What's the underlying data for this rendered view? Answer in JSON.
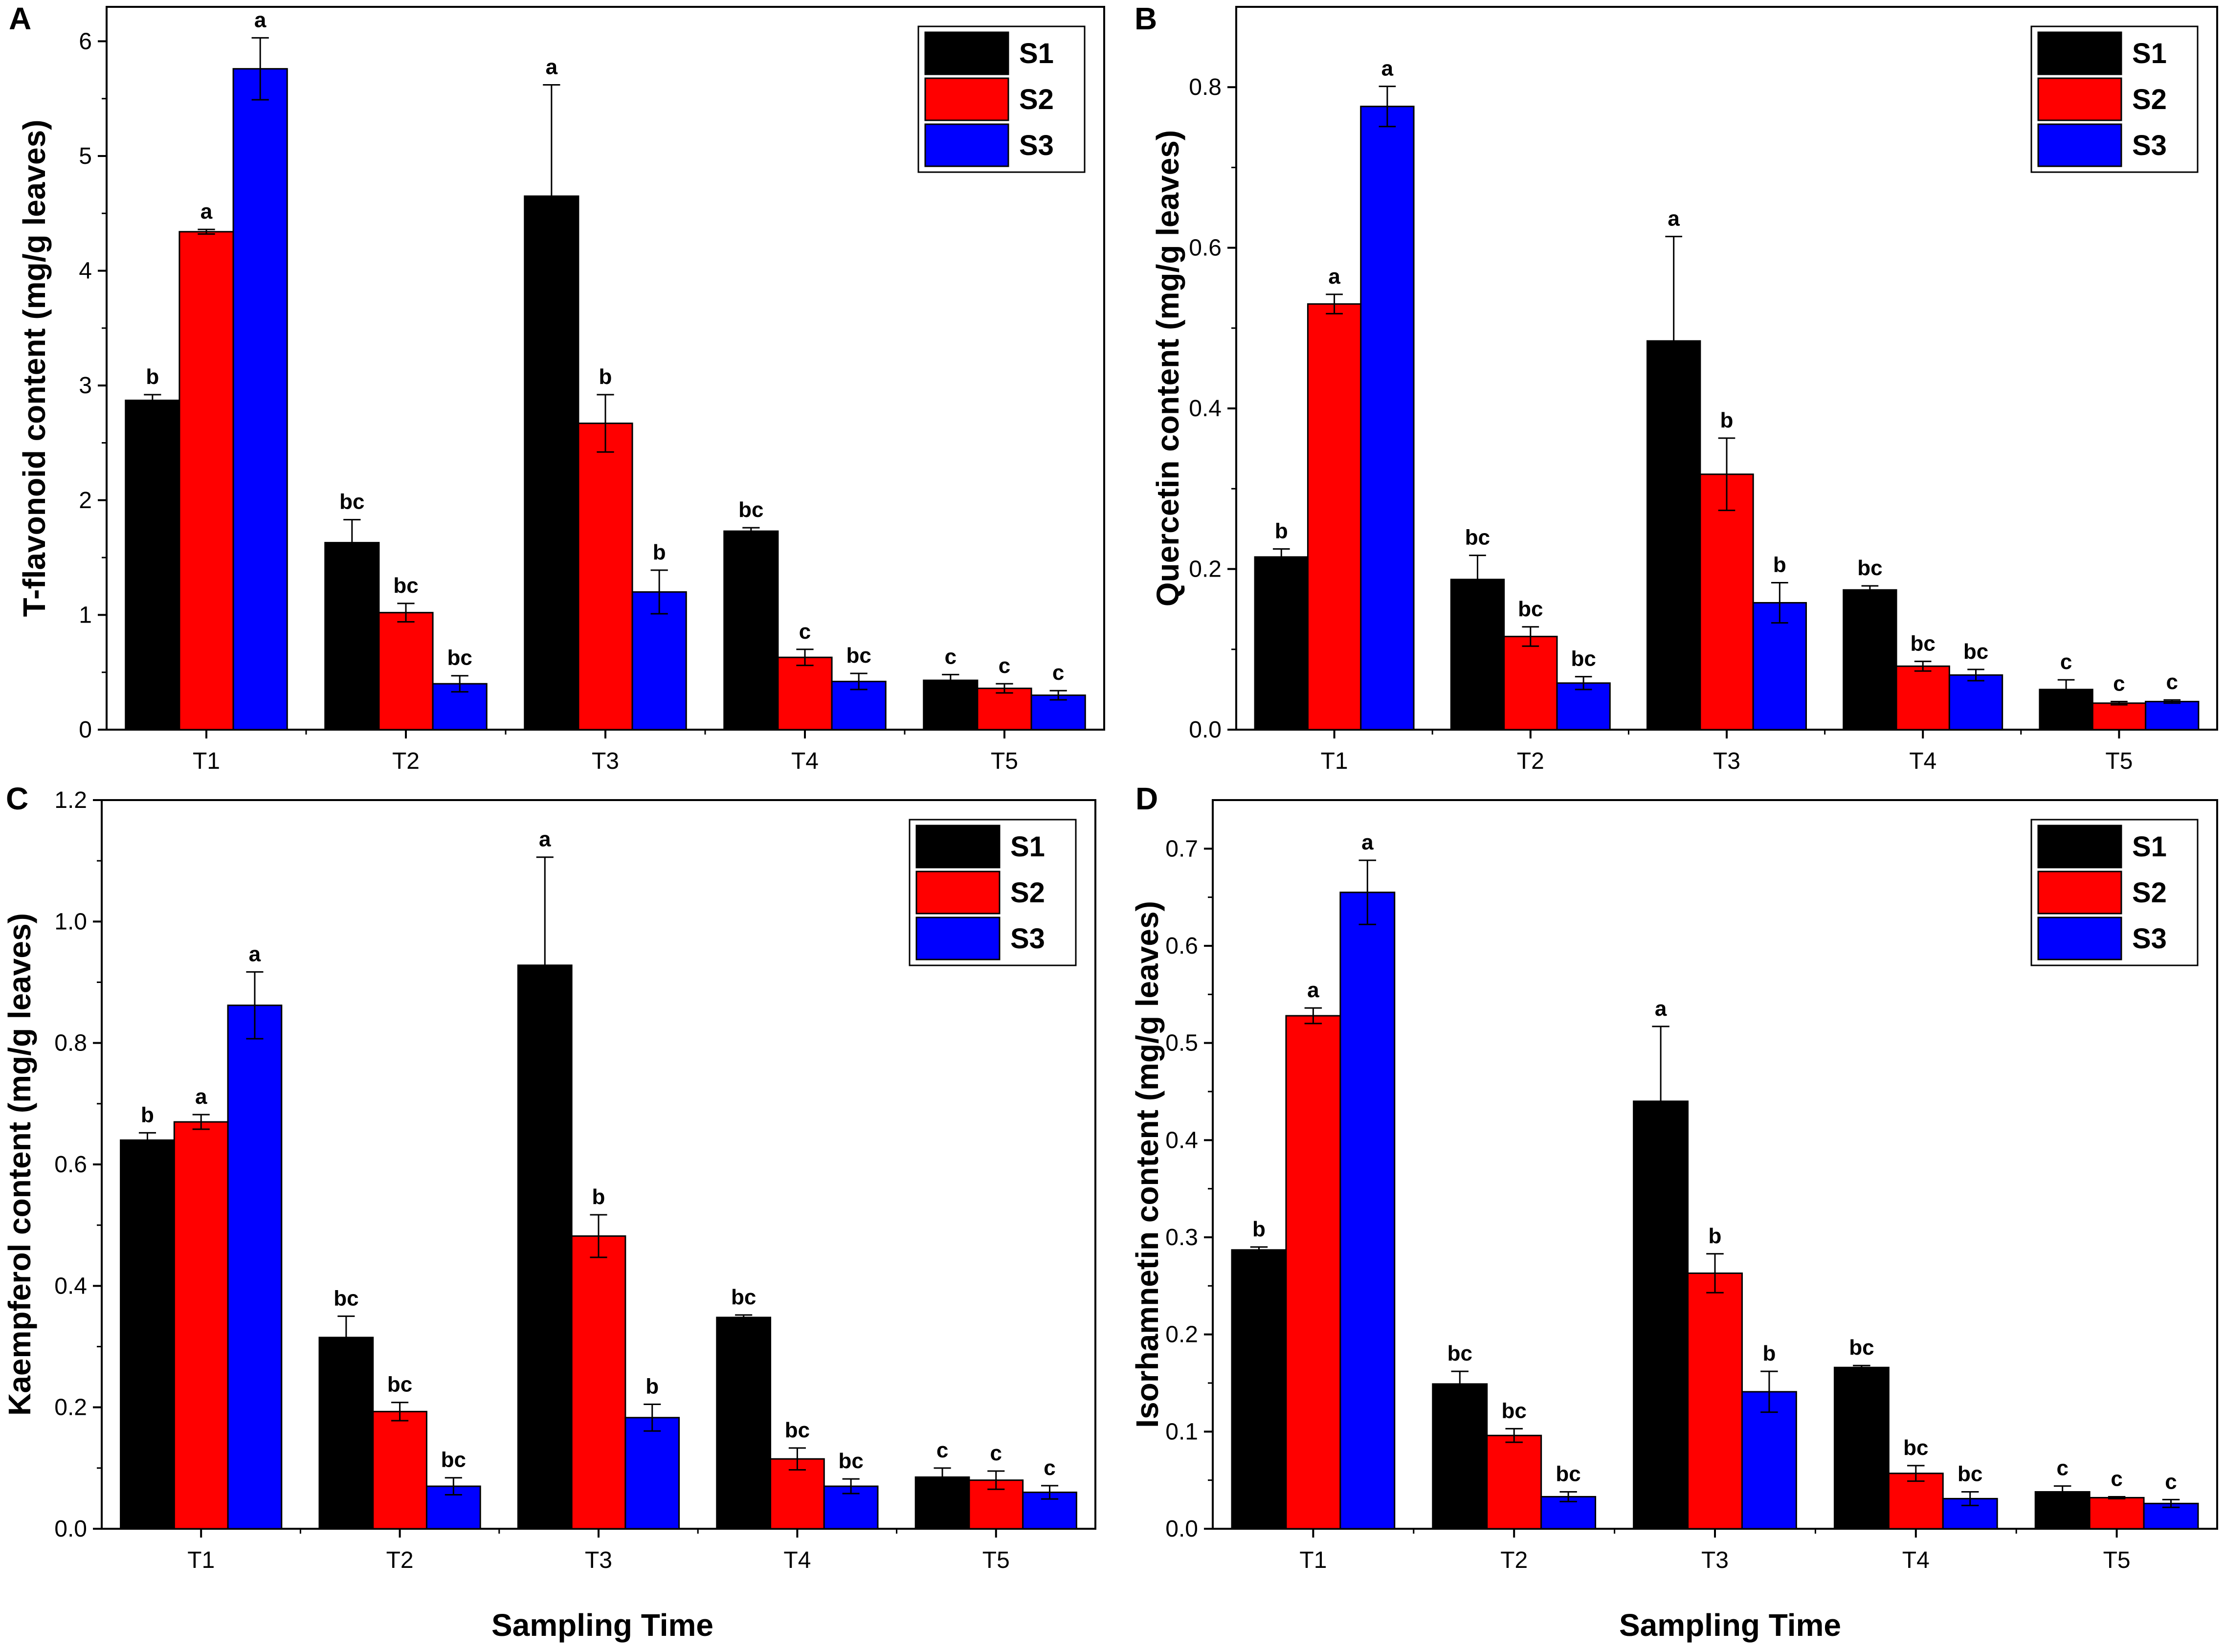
{
  "x_axis_label": "Sampling Time",
  "series_names": [
    "S1",
    "S2",
    "S3"
  ],
  "colors": {
    "S1": "#000000",
    "S2": "#ff0000",
    "S3": "#0000ff",
    "axis": "#000000"
  },
  "chart_data": [
    {
      "panel": "A",
      "type": "bar",
      "categories": [
        "T1",
        "T2",
        "T3",
        "T4",
        "T5"
      ],
      "ylabel": "T-flavonoid content (mg/g leaves)",
      "xlabel": "Sampling Time",
      "ylim": [
        0,
        6.3
      ],
      "yticks": [
        0,
        1,
        2,
        3,
        4,
        5,
        6
      ],
      "ytick_labels": [
        "0",
        "1",
        "2",
        "3",
        "4",
        "5",
        "6"
      ],
      "legend_position": "top-right",
      "series": [
        {
          "name": "S1",
          "values": [
            2.87,
            1.63,
            4.65,
            1.73,
            0.43
          ],
          "errors": [
            0.05,
            0.2,
            0.97,
            0.03,
            0.05
          ],
          "labels": [
            "b",
            "bc",
            "a",
            "bc",
            "c"
          ]
        },
        {
          "name": "S2",
          "values": [
            4.34,
            1.02,
            2.67,
            0.63,
            0.36
          ],
          "errors": [
            0.02,
            0.08,
            0.25,
            0.07,
            0.04
          ],
          "labels": [
            "a",
            "bc",
            "b",
            "c",
            "c"
          ]
        },
        {
          "name": "S3",
          "values": [
            5.76,
            0.4,
            1.2,
            0.42,
            0.3
          ],
          "errors": [
            0.27,
            0.07,
            0.19,
            0.07,
            0.04
          ],
          "labels": [
            "a",
            "bc",
            "b",
            "bc",
            "c"
          ]
        }
      ]
    },
    {
      "panel": "B",
      "type": "bar",
      "categories": [
        "T1",
        "T2",
        "T3",
        "T4",
        "T5"
      ],
      "ylabel": "Quercetin content (mg/g leaves)",
      "xlabel": "Sampling Time",
      "ylim": [
        0,
        0.9
      ],
      "yticks": [
        0,
        0.2,
        0.4,
        0.6,
        0.8
      ],
      "ytick_labels": [
        "0.0",
        "0.2",
        "0.4",
        "0.6",
        "0.8"
      ],
      "legend_position": "top-right",
      "series": [
        {
          "name": "S1",
          "values": [
            0.215,
            0.187,
            0.484,
            0.174,
            0.05
          ],
          "errors": [
            0.01,
            0.03,
            0.13,
            0.005,
            0.012
          ],
          "labels": [
            "b",
            "bc",
            "a",
            "bc",
            "c"
          ]
        },
        {
          "name": "S2",
          "values": [
            0.53,
            0.116,
            0.318,
            0.079,
            0.033
          ],
          "errors": [
            0.012,
            0.012,
            0.045,
            0.006,
            0.002
          ],
          "labels": [
            "a",
            "bc",
            "b",
            "bc",
            "c"
          ]
        },
        {
          "name": "S3",
          "values": [
            0.776,
            0.058,
            0.158,
            0.068,
            0.035
          ],
          "errors": [
            0.025,
            0.008,
            0.025,
            0.007,
            0.002
          ],
          "labels": [
            "a",
            "bc",
            "b",
            "bc",
            "c"
          ]
        }
      ]
    },
    {
      "panel": "C",
      "type": "bar",
      "categories": [
        "T1",
        "T2",
        "T3",
        "T4",
        "T5"
      ],
      "ylabel": "Kaempferol content (mg/g leaves)",
      "xlabel": "Sampling Time",
      "ylim": [
        0,
        1.2
      ],
      "yticks": [
        0,
        0.2,
        0.4,
        0.6,
        0.8,
        1.0,
        1.2
      ],
      "ytick_labels": [
        "0.0",
        "0.2",
        "0.4",
        "0.6",
        "0.8",
        "1.0",
        "1.2"
      ],
      "legend_position": "top-right",
      "series": [
        {
          "name": "S1",
          "values": [
            0.64,
            0.315,
            0.928,
            0.348,
            0.085
          ],
          "errors": [
            0.012,
            0.035,
            0.178,
            0.004,
            0.015
          ],
          "labels": [
            "b",
            "bc",
            "a",
            "bc",
            "c"
          ]
        },
        {
          "name": "S2",
          "values": [
            0.67,
            0.193,
            0.482,
            0.115,
            0.08
          ],
          "errors": [
            0.012,
            0.015,
            0.035,
            0.018,
            0.015
          ],
          "labels": [
            "a",
            "bc",
            "b",
            "bc",
            "c"
          ]
        },
        {
          "name": "S3",
          "values": [
            0.862,
            0.07,
            0.183,
            0.07,
            0.06
          ],
          "errors": [
            0.055,
            0.014,
            0.022,
            0.012,
            0.011
          ],
          "labels": [
            "a",
            "bc",
            "b",
            "bc",
            "c"
          ]
        }
      ]
    },
    {
      "panel": "D",
      "type": "bar",
      "categories": [
        "T1",
        "T2",
        "T3",
        "T4",
        "T5"
      ],
      "ylabel": "Isorhamnetin content (mg/g leaves)",
      "xlabel": "Sampling Time",
      "ylim": [
        0,
        0.75
      ],
      "yticks": [
        0,
        0.1,
        0.2,
        0.3,
        0.4,
        0.5,
        0.6,
        0.7
      ],
      "ytick_labels": [
        "0.0",
        "0.1",
        "0.2",
        "0.3",
        "0.4",
        "0.5",
        "0.6",
        "0.7"
      ],
      "legend_position": "top-right",
      "series": [
        {
          "name": "S1",
          "values": [
            0.287,
            0.149,
            0.44,
            0.166,
            0.038
          ],
          "errors": [
            0.003,
            0.013,
            0.077,
            0.002,
            0.006
          ],
          "labels": [
            "b",
            "bc",
            "a",
            "bc",
            "c"
          ]
        },
        {
          "name": "S2",
          "values": [
            0.528,
            0.096,
            0.263,
            0.057,
            0.032
          ],
          "errors": [
            0.008,
            0.007,
            0.02,
            0.008,
            0.001
          ],
          "labels": [
            "a",
            "bc",
            "b",
            "bc",
            "c"
          ]
        },
        {
          "name": "S3",
          "values": [
            0.655,
            0.033,
            0.141,
            0.031,
            0.026
          ],
          "errors": [
            0.033,
            0.005,
            0.021,
            0.007,
            0.004
          ],
          "labels": [
            "a",
            "bc",
            "b",
            "bc",
            "c"
          ]
        }
      ]
    }
  ]
}
